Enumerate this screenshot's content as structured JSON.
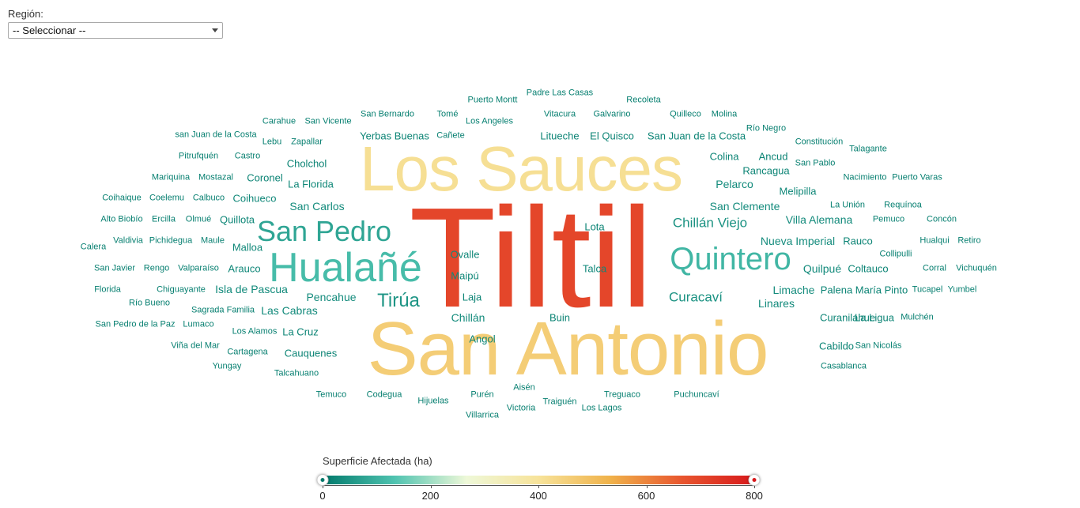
{
  "filter": {
    "label": "Región:",
    "selected": "-- Seleccionar --"
  },
  "chart_data": {
    "type": "wordcloud",
    "value_label": "Superficie Afectada (ha)",
    "color_range": [
      0,
      800
    ],
    "color_stops": [
      "#00796b",
      "#4fc3b0",
      "#eef8d8",
      "#f7e39a",
      "#f0b24a",
      "#e8552e",
      "#d7191c"
    ],
    "ticks": [
      0,
      200,
      400,
      600,
      800
    ],
    "words": [
      {
        "text": "Tiltil",
        "value": 700
      },
      {
        "text": "San Antonio",
        "value": 460
      },
      {
        "text": "Los Sauces",
        "value": 410
      },
      {
        "text": "Hualañé",
        "value": 120
      },
      {
        "text": "Quintero",
        "value": 110
      },
      {
        "text": "San Pedro",
        "value": 80
      },
      {
        "text": "Tirúa",
        "value": 50
      },
      {
        "text": "Chillán Viejo",
        "value": 45
      },
      {
        "text": "Curacaví",
        "value": 45
      },
      {
        "text": "San Carlos",
        "value": 35
      },
      {
        "text": "San Clemente",
        "value": 35
      },
      {
        "text": "Pencahue",
        "value": 35
      },
      {
        "text": "Chillán",
        "value": 35
      },
      {
        "text": "Nueva Imperial",
        "value": 35
      },
      {
        "text": "Limache",
        "value": 35
      },
      {
        "text": "Los Angeles",
        "value": 15
      },
      {
        "text": "Pelarco",
        "value": 30
      },
      {
        "text": "Villa Alemana",
        "value": 30
      },
      {
        "text": "Quilpué",
        "value": 30
      },
      {
        "text": "Linares",
        "value": 30
      },
      {
        "text": "Isla de Pascua",
        "value": 30
      },
      {
        "text": "Las Cabras",
        "value": 30
      },
      {
        "text": "Ovalle",
        "value": 25
      },
      {
        "text": "Maipú",
        "value": 25
      },
      {
        "text": "Talca",
        "value": 25
      },
      {
        "text": "La Florida",
        "value": 25
      },
      {
        "text": "Quillota",
        "value": 25
      },
      {
        "text": "Arauco",
        "value": 25
      },
      {
        "text": "Malloa",
        "value": 25
      },
      {
        "text": "Coihueco",
        "value": 25
      },
      {
        "text": "Melipilla",
        "value": 25
      },
      {
        "text": "Cholchol",
        "value": 20
      },
      {
        "text": "Yerbas Buenas",
        "value": 20
      },
      {
        "text": "Litueche",
        "value": 20
      },
      {
        "text": "El Quisco",
        "value": 20
      },
      {
        "text": "San Juan de la Costa",
        "value": 20
      },
      {
        "text": "Colina",
        "value": 20
      },
      {
        "text": "Ancud",
        "value": 20
      },
      {
        "text": "Rancagua",
        "value": 20
      },
      {
        "text": "Lota",
        "value": 20
      },
      {
        "text": "Buin",
        "value": 20
      },
      {
        "text": "La Cruz",
        "value": 20
      },
      {
        "text": "Angol",
        "value": 20
      },
      {
        "text": "Laja",
        "value": 20
      },
      {
        "text": "Coronel",
        "value": 20
      },
      {
        "text": "Rauco",
        "value": 20
      },
      {
        "text": "Coltauco",
        "value": 20
      },
      {
        "text": "Palena",
        "value": 20
      },
      {
        "text": "María Pinto",
        "value": 20
      },
      {
        "text": "Curanilahue",
        "value": 20
      },
      {
        "text": "La Ligua",
        "value": 20
      },
      {
        "text": "Cabildo",
        "value": 20
      },
      {
        "text": "Cauquenes",
        "value": 20
      },
      {
        "text": "Padre Las Casas",
        "value": 10
      },
      {
        "text": "Puerto Montt",
        "value": 10
      },
      {
        "text": "Recoleta",
        "value": 10
      },
      {
        "text": "Tomé",
        "value": 10
      },
      {
        "text": "San Bernardo",
        "value": 10
      },
      {
        "text": "Vitacura",
        "value": 10
      },
      {
        "text": "Galvarino",
        "value": 10
      },
      {
        "text": "Quilleco",
        "value": 10
      },
      {
        "text": "Molina",
        "value": 10
      },
      {
        "text": "Carahue",
        "value": 10
      },
      {
        "text": "San Vicente",
        "value": 10
      },
      {
        "text": "Cañete",
        "value": 10
      },
      {
        "text": "Río Negro",
        "value": 10
      },
      {
        "text": "san Juan de la Costa",
        "value": 10
      },
      {
        "text": "Lebu",
        "value": 10
      },
      {
        "text": "Zapallar",
        "value": 10
      },
      {
        "text": "Constitución",
        "value": 10
      },
      {
        "text": "Talagante",
        "value": 10
      },
      {
        "text": "Pitrufquén",
        "value": 10
      },
      {
        "text": "Castro",
        "value": 10
      },
      {
        "text": "San Pablo",
        "value": 10
      },
      {
        "text": "Mariquina",
        "value": 10
      },
      {
        "text": "Mostazal",
        "value": 10
      },
      {
        "text": "Nacimiento",
        "value": 10
      },
      {
        "text": "Puerto Varas",
        "value": 10
      },
      {
        "text": "Coihaique",
        "value": 10
      },
      {
        "text": "Coelemu",
        "value": 10
      },
      {
        "text": "Calbuco",
        "value": 10
      },
      {
        "text": "La Unión",
        "value": 10
      },
      {
        "text": "Requínoa",
        "value": 10
      },
      {
        "text": "Alto Biobío",
        "value": 10
      },
      {
        "text": "Ercilla",
        "value": 10
      },
      {
        "text": "Olmué",
        "value": 10
      },
      {
        "text": "Pemuco",
        "value": 10
      },
      {
        "text": "Concón",
        "value": 10
      },
      {
        "text": "Valdivia",
        "value": 10
      },
      {
        "text": "Pichidegua",
        "value": 10
      },
      {
        "text": "Maule",
        "value": 10
      },
      {
        "text": "Hualqui",
        "value": 10
      },
      {
        "text": "Retiro",
        "value": 10
      },
      {
        "text": "Calera",
        "value": 10
      },
      {
        "text": "Collipulli",
        "value": 10
      },
      {
        "text": "San Javier",
        "value": 10
      },
      {
        "text": "Rengo",
        "value": 10
      },
      {
        "text": "Valparaíso",
        "value": 10
      },
      {
        "text": "Corral",
        "value": 10
      },
      {
        "text": "Vichuquén",
        "value": 10
      },
      {
        "text": "Florida",
        "value": 10
      },
      {
        "text": "Chiguayante",
        "value": 10
      },
      {
        "text": "Tucapel",
        "value": 10
      },
      {
        "text": "Yumbel",
        "value": 10
      },
      {
        "text": "Río Bueno",
        "value": 10
      },
      {
        "text": "Sagrada Familia",
        "value": 10
      },
      {
        "text": "San Pedro de la Paz",
        "value": 10
      },
      {
        "text": "Lumaco",
        "value": 10
      },
      {
        "text": "Mulchén",
        "value": 10
      },
      {
        "text": "Los Alamos",
        "value": 10
      },
      {
        "text": "Viña del Mar",
        "value": 10
      },
      {
        "text": "Cartagena",
        "value": 10
      },
      {
        "text": "San Nicolás",
        "value": 10
      },
      {
        "text": "Yungay",
        "value": 10
      },
      {
        "text": "Casablanca",
        "value": 10
      },
      {
        "text": "Talcahuano",
        "value": 10
      },
      {
        "text": "Aisén",
        "value": 10
      },
      {
        "text": "Temuco",
        "value": 10
      },
      {
        "text": "Codegua",
        "value": 10
      },
      {
        "text": "Purén",
        "value": 10
      },
      {
        "text": "Treguaco",
        "value": 10
      },
      {
        "text": "Puchuncaví",
        "value": 10
      },
      {
        "text": "Hijuelas",
        "value": 10
      },
      {
        "text": "Traiguén",
        "value": 10
      },
      {
        "text": "Victoria",
        "value": 10
      },
      {
        "text": "Los Lagos",
        "value": 10
      },
      {
        "text": "Villarrica",
        "value": 10
      }
    ]
  }
}
